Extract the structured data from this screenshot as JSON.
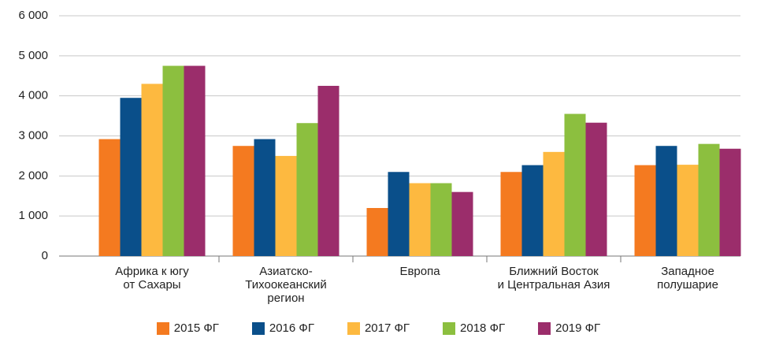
{
  "chart_data": {
    "type": "bar",
    "categories": [
      "Африка к югу\nот Сахары",
      "Азиатско-\nТихоокеанский\nрегион",
      "Европа",
      "Ближний Восток\nи Центральная Азия",
      "Западное\nполушарие"
    ],
    "series": [
      {
        "name": "2015 ФГ",
        "color": "#f47a20",
        "values": [
          2920,
          2750,
          1200,
          2100,
          2270
        ]
      },
      {
        "name": "2016 ФГ",
        "color": "#0a4f8a",
        "values": [
          3950,
          2920,
          2100,
          2270,
          2750
        ]
      },
      {
        "name": "2017 ФГ",
        "color": "#fdb940",
        "values": [
          4300,
          2500,
          1820,
          2600,
          2280
        ]
      },
      {
        "name": "2018 ФГ",
        "color": "#8cbf3f",
        "values": [
          4750,
          3320,
          1820,
          3550,
          2800
        ]
      },
      {
        "name": "2019 ФГ",
        "color": "#9b2d6b",
        "values": [
          4750,
          4250,
          1600,
          3330,
          2680
        ]
      }
    ],
    "ylim": [
      0,
      6000
    ],
    "yticks": [
      0,
      {
        "value": 1000,
        "label": "1 000"
      },
      {
        "value": 2000,
        "label": "2 000"
      },
      {
        "value": 3000,
        "label": "3 000"
      },
      {
        "value": 4000,
        "label": "4 000"
      },
      {
        "value": 5000,
        "label": "5 000"
      },
      {
        "value": 6000,
        "label": "6 000"
      }
    ],
    "grid": true
  }
}
